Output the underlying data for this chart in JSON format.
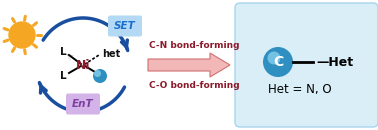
{
  "bg_color": "#ffffff",
  "sun_color": "#F5A623",
  "sun_ray_color": "#F5A623",
  "circle_color": "#1a4fa0",
  "set_box_color": "#b3d9f5",
  "set_text": "SET",
  "set_text_color": "#1a6fcc",
  "ent_box_color": "#d4b3e8",
  "ent_text": "EnT",
  "ent_text_color": "#7b3fa0",
  "ni_color": "#8b1a2a",
  "L_color": "#111111",
  "het_label_color": "#111111",
  "bond_text1": "C-N bond-forming",
  "bond_text2": "C-O bond-forming",
  "bond_text_color": "#8b1a2a",
  "product_box_color": "#daeef8",
  "product_box_edge": "#a8d4ef",
  "het_eq": "Het = N, O"
}
